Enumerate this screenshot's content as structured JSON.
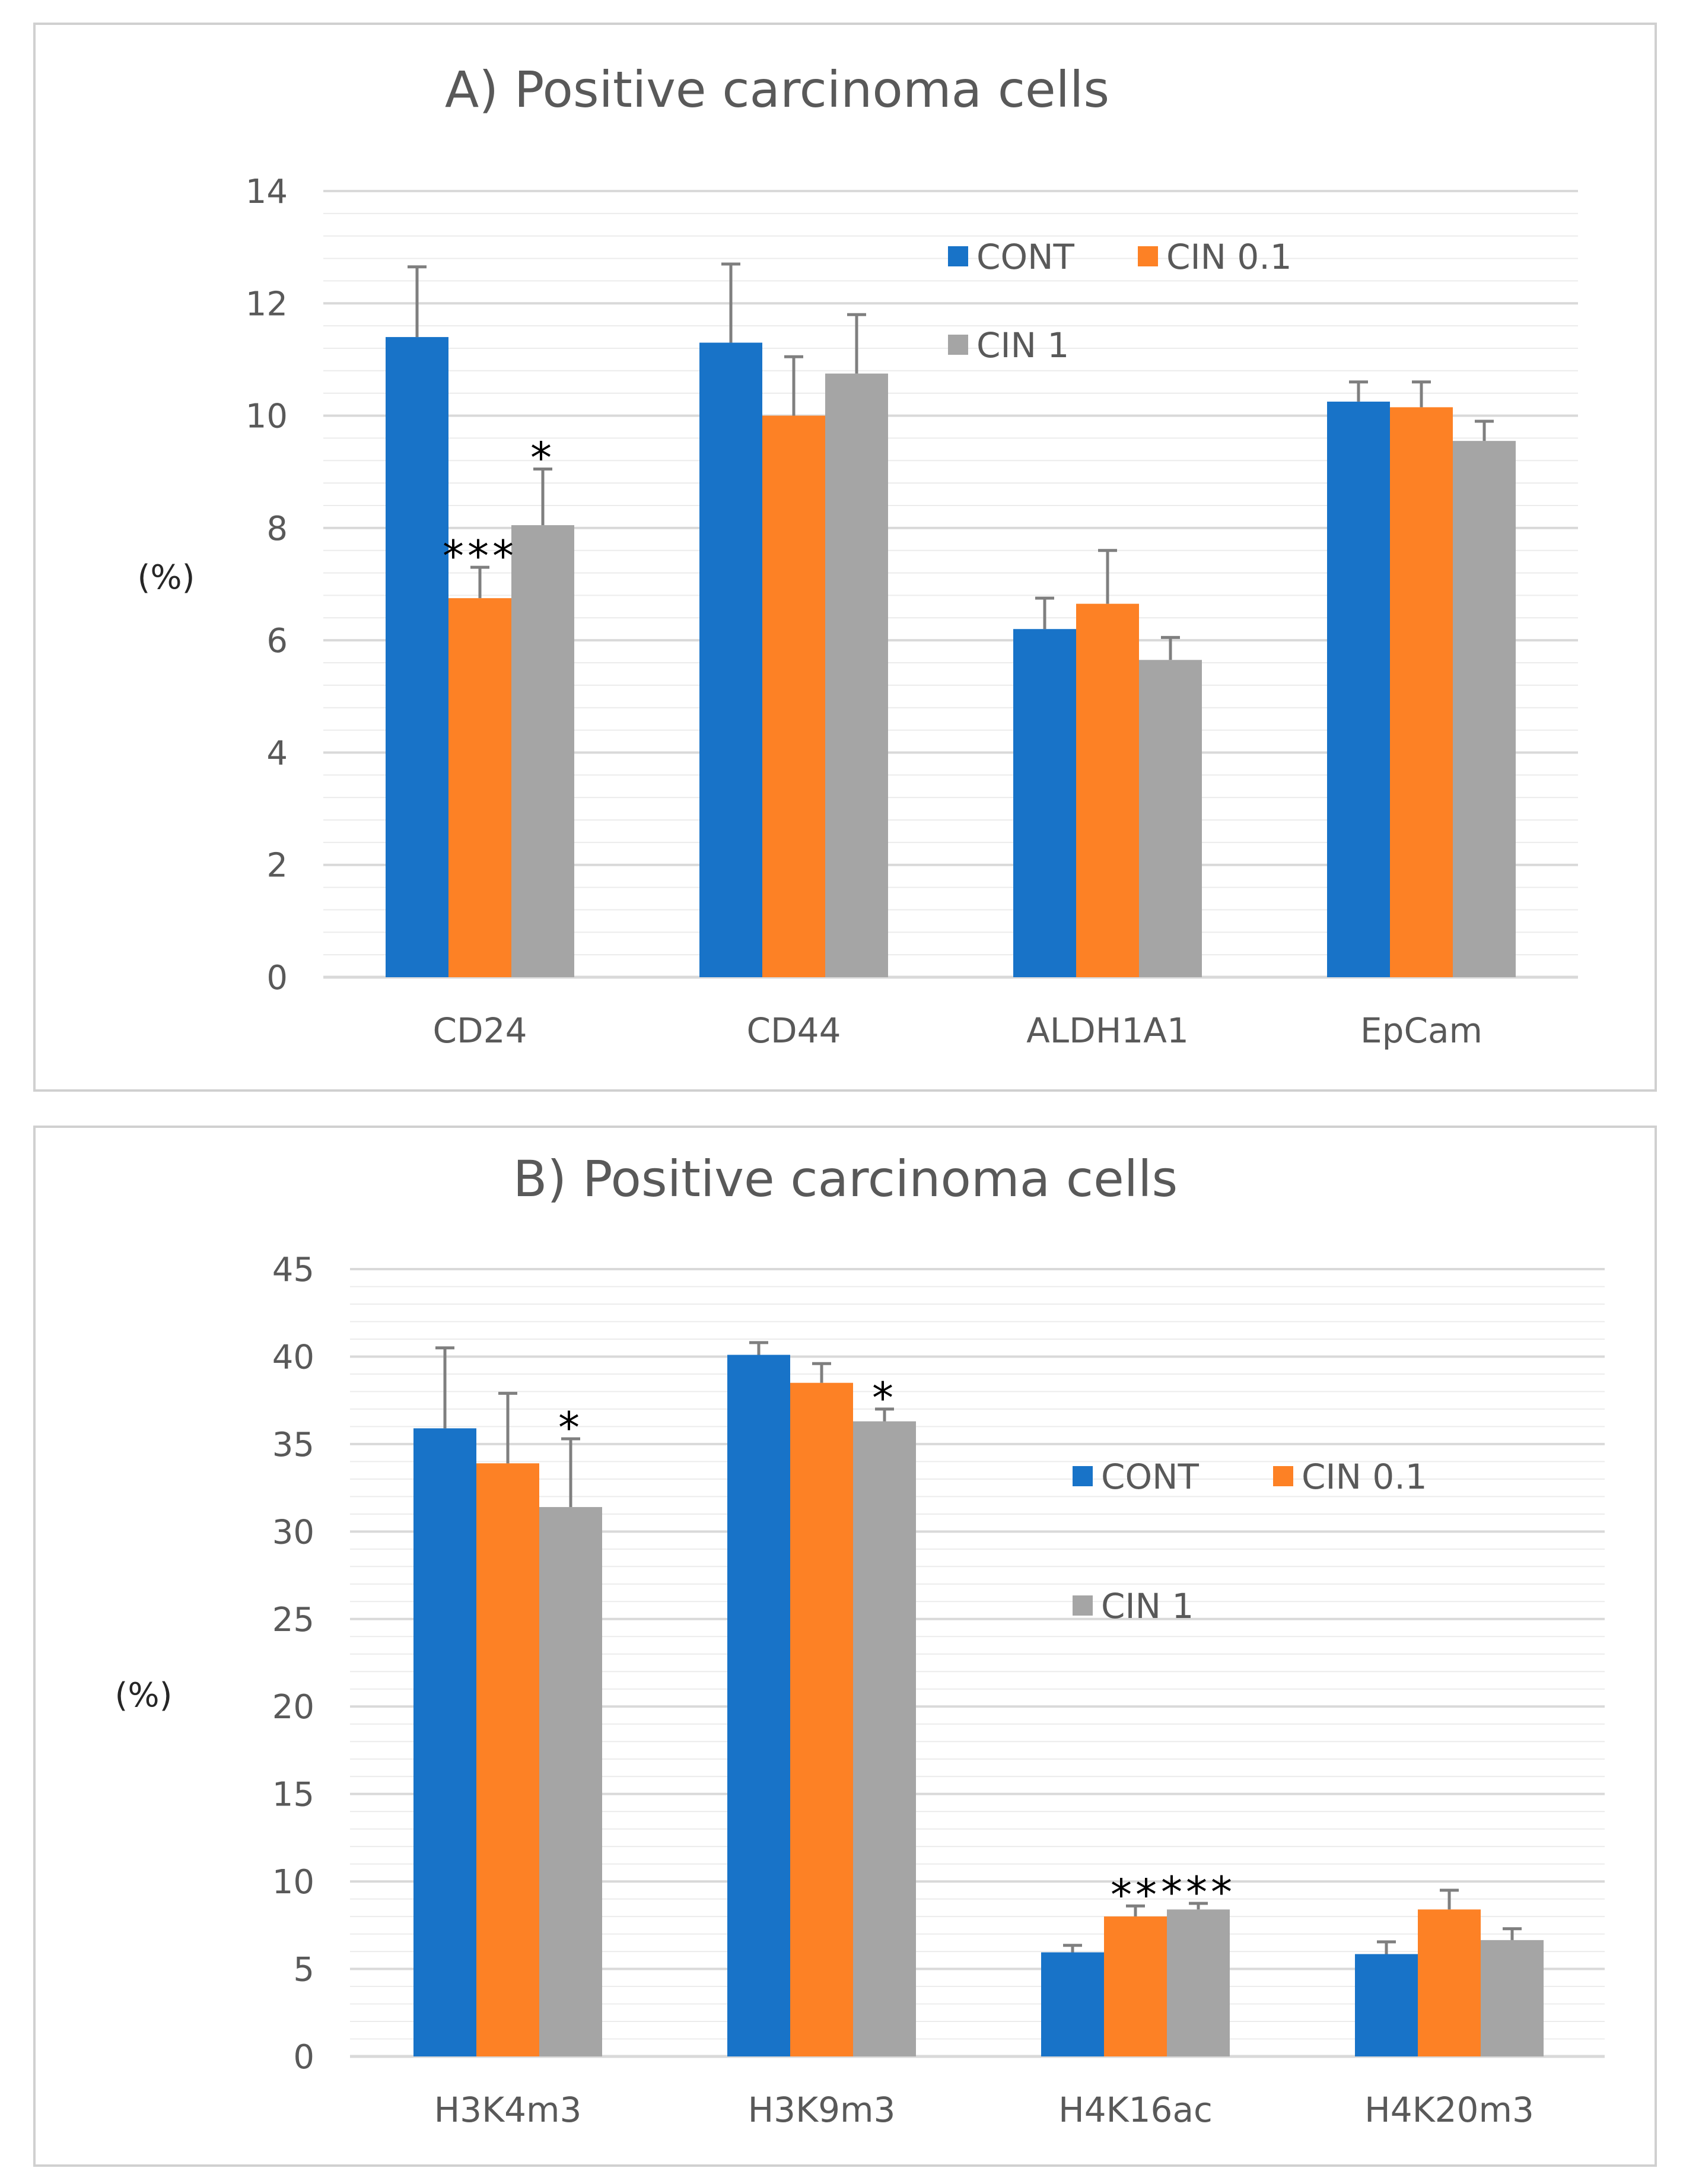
{
  "chart_data": [
    {
      "type": "bar",
      "title": "A) Positive carcinoma cells",
      "xlabel": "",
      "ylabel": "(%)",
      "ylim": [
        0,
        14
      ],
      "ytick_step": 2,
      "minor_step": 0.4,
      "yticks": [
        "0",
        "2",
        "4",
        "6",
        "8",
        "10",
        "12",
        "14"
      ],
      "categories": [
        "CD24",
        "CD44",
        "ALDH1A1",
        "EpCam"
      ],
      "series": [
        {
          "name": "CONT",
          "color": "#1873c8",
          "values": [
            11.4,
            11.3,
            6.2,
            10.25
          ],
          "errors": [
            1.25,
            1.4,
            0.55,
            0.35
          ]
        },
        {
          "name": "CIN 0.1",
          "color": "#fd8125",
          "values": [
            6.75,
            10.0,
            6.65,
            10.15
          ],
          "errors": [
            0.55,
            1.05,
            0.95,
            0.45
          ]
        },
        {
          "name": "CIN 1",
          "color": "#a5a5a5",
          "values": [
            8.05,
            10.75,
            5.65,
            9.55
          ],
          "errors": [
            1.0,
            1.05,
            0.4,
            0.35
          ]
        }
      ],
      "significance": [
        {
          "category": 0,
          "series": 1,
          "text": "***"
        },
        {
          "category": 0,
          "series": 2,
          "text": "*"
        }
      ],
      "legend": {
        "placement": "top-right"
      }
    },
    {
      "type": "bar",
      "title": "B) Positive carcinoma cells",
      "xlabel": "",
      "ylabel": "(%)",
      "ylim": [
        0,
        45
      ],
      "ytick_step": 5,
      "minor_step": 1,
      "yticks": [
        "0",
        "5",
        "10",
        "15",
        "20",
        "25",
        "30",
        "35",
        "40",
        "45"
      ],
      "categories": [
        "H3K4m3",
        "H3K9m3",
        "H4K16ac",
        "H4K20m3"
      ],
      "series": [
        {
          "name": "CONT",
          "color": "#1873c8",
          "values": [
            35.9,
            40.1,
            5.95,
            5.85
          ],
          "errors": [
            4.6,
            0.7,
            0.4,
            0.7
          ]
        },
        {
          "name": "CIN 0.1",
          "color": "#fd8125",
          "values": [
            33.9,
            38.5,
            8.0,
            8.4
          ],
          "errors": [
            4.0,
            1.1,
            0.6,
            1.1
          ]
        },
        {
          "name": "CIN 1",
          "color": "#a5a5a5",
          "values": [
            31.4,
            36.3,
            8.4,
            6.65
          ],
          "errors": [
            3.9,
            0.7,
            0.35,
            0.65
          ]
        }
      ],
      "significance": [
        {
          "category": 0,
          "series": 2,
          "text": "*"
        },
        {
          "category": 1,
          "series": 2,
          "text": "*"
        },
        {
          "category": 2,
          "series": 1,
          "text": "**"
        },
        {
          "category": 2,
          "series": 2,
          "text": "***"
        }
      ],
      "legend": {
        "placement": "top-right"
      }
    }
  ]
}
